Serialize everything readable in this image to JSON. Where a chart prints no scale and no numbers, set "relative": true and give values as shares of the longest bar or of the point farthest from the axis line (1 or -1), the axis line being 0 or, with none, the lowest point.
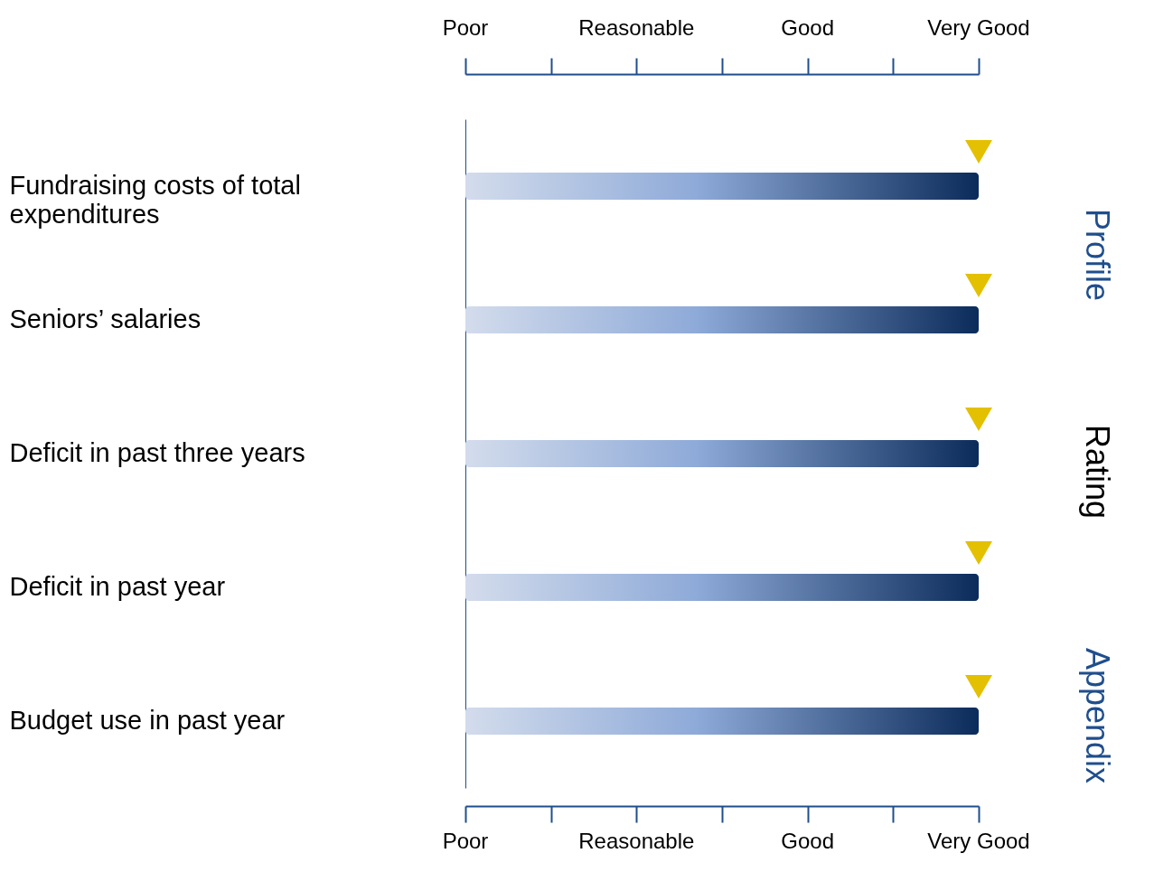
{
  "chart_data": {
    "type": "bar",
    "orientation": "horizontal",
    "relative": true,
    "categories": [
      "Fundraising costs of  total expenditures",
      "Seniors’ salaries",
      "Deficit in past three years",
      "Deficit in past year",
      "Budget use in past year"
    ],
    "series": [
      {
        "color": "#0b2b5a",
        "values": [
          1,
          1,
          1,
          1,
          1
        ]
      },
      {
        "type": "scatter",
        "color": "#e3c000",
        "values": [
          1,
          1,
          1,
          1,
          1
        ]
      }
    ],
    "marker": "triangle",
    "grid": false,
    "annotations": [
      "Poor",
      "Reasonable",
      "Good",
      "Very Good",
      "Poor",
      "Reasonable",
      "Good",
      "Very Good",
      "Profile",
      "Rating",
      "Appendix"
    ]
  }
}
